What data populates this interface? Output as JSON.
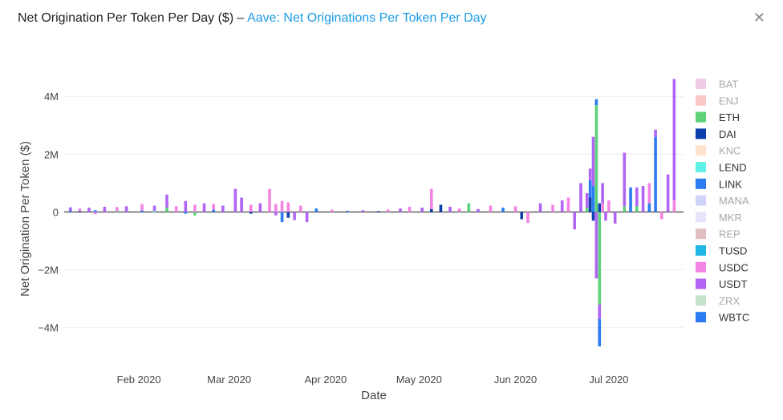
{
  "header": {
    "title": "Net Origination Per Token Per Day ($)",
    "separator": "–",
    "link_text": "Aave: Net Originations Per Token Per Day"
  },
  "close_icon": "close-icon",
  "chart_data": {
    "type": "bar",
    "barmode": "relative",
    "xlabel": "Date",
    "ylabel": "Net Origination Per Token ($)",
    "x_range": [
      "2020-01-08",
      "2020-07-25"
    ],
    "ylim": [
      -5200000,
      4700000
    ],
    "y_ticks": [
      {
        "value": 4000000,
        "label": "4M"
      },
      {
        "value": 2000000,
        "label": "2M"
      },
      {
        "value": 0,
        "label": "0"
      },
      {
        "value": -2000000,
        "label": "−2M"
      },
      {
        "value": -4000000,
        "label": "−4M"
      }
    ],
    "x_ticks": [
      {
        "date": "2020-02-01",
        "label": "Feb 2020"
      },
      {
        "date": "2020-03-01",
        "label": "Mar 2020"
      },
      {
        "date": "2020-04-01",
        "label": "Apr 2020"
      },
      {
        "date": "2020-05-01",
        "label": "May 2020"
      },
      {
        "date": "2020-06-01",
        "label": "Jun 2020"
      },
      {
        "date": "2020-07-01",
        "label": "Jul 2020"
      }
    ],
    "grid": true,
    "legend_position": "right",
    "series": [
      {
        "name": "BAT",
        "color": "#e3a2d4",
        "visible": false
      },
      {
        "name": "ENJ",
        "color": "#f49a9a",
        "visible": false
      },
      {
        "name": "ETH",
        "color": "#5dd27a",
        "visible": true
      },
      {
        "name": "DAI",
        "color": "#0d3fad",
        "visible": true
      },
      {
        "name": "KNC",
        "color": "#ffcba4",
        "visible": false
      },
      {
        "name": "LEND",
        "color": "#5ff0e6",
        "visible": true
      },
      {
        "name": "LINK",
        "color": "#2b7cf0",
        "visible": true
      },
      {
        "name": "MANA",
        "color": "#aab0f2",
        "visible": false
      },
      {
        "name": "MKR",
        "color": "#d4cdf8",
        "visible": false
      },
      {
        "name": "REP",
        "color": "#c98a8e",
        "visible": false
      },
      {
        "name": "TUSD",
        "color": "#1fb8e6",
        "visible": true
      },
      {
        "name": "USDC",
        "color": "#f384e4",
        "visible": true
      },
      {
        "name": "USDT",
        "color": "#b165f4",
        "visible": true
      },
      {
        "name": "ZRX",
        "color": "#93cba3",
        "visible": false
      },
      {
        "name": "WBTC",
        "color": "#2b7cf0",
        "visible": true
      }
    ],
    "days": [
      {
        "date": "2020-01-10",
        "values": {
          "USDT": 120000,
          "LINK": 40000
        }
      },
      {
        "date": "2020-01-13",
        "values": {
          "USDC": 90000,
          "DAI": 30000
        }
      },
      {
        "date": "2020-01-16",
        "values": {
          "USDT": 150000
        }
      },
      {
        "date": "2020-01-18",
        "values": {
          "USDC": -80000,
          "LINK": 60000
        }
      },
      {
        "date": "2020-01-21",
        "values": {
          "USDT": 180000
        }
      },
      {
        "date": "2020-01-25",
        "values": {
          "USDC": 140000,
          "ETH": 30000
        }
      },
      {
        "date": "2020-01-28",
        "values": {
          "USDT": 200000
        }
      },
      {
        "date": "2020-02-02",
        "values": {
          "USDC": 220000,
          "LINK": 50000
        }
      },
      {
        "date": "2020-02-06",
        "values": {
          "USDT": 180000,
          "LEND": 40000
        }
      },
      {
        "date": "2020-02-10",
        "values": {
          "USDT": 450000,
          "ETH": 150000
        }
      },
      {
        "date": "2020-02-13",
        "values": {
          "USDC": 200000
        }
      },
      {
        "date": "2020-02-16",
        "values": {
          "USDT": 380000,
          "LINK": -60000
        }
      },
      {
        "date": "2020-02-19",
        "values": {
          "USDC": 250000,
          "ETH": -120000
        }
      },
      {
        "date": "2020-02-22",
        "values": {
          "USDT": 300000
        }
      },
      {
        "date": "2020-02-25",
        "values": {
          "USDC": 200000,
          "LINK": 80000
        }
      },
      {
        "date": "2020-02-28",
        "values": {
          "USDT": 220000
        }
      },
      {
        "date": "2020-03-03",
        "values": {
          "USDT": 800000
        }
      },
      {
        "date": "2020-03-05",
        "values": {
          "USDT": 500000
        }
      },
      {
        "date": "2020-03-08",
        "values": {
          "USDC": 250000,
          "DAI": -60000
        }
      },
      {
        "date": "2020-03-11",
        "values": {
          "USDT": 300000
        }
      },
      {
        "date": "2020-03-14",
        "values": {
          "USDC": 800000
        }
      },
      {
        "date": "2020-03-16",
        "values": {
          "USDC": 280000,
          "USDT": -120000
        }
      },
      {
        "date": "2020-03-18",
        "values": {
          "USDC": 380000,
          "LINK": -350000
        }
      },
      {
        "date": "2020-03-20",
        "values": {
          "USDC": 330000,
          "DAI": -200000
        }
      },
      {
        "date": "2020-03-22",
        "values": {
          "USDT": -280000
        }
      },
      {
        "date": "2020-03-24",
        "values": {
          "USDC": 220000
        }
      },
      {
        "date": "2020-03-26",
        "values": {
          "USDT": -350000
        }
      },
      {
        "date": "2020-03-29",
        "values": {
          "LINK": 120000
        }
      },
      {
        "date": "2020-04-03",
        "values": {
          "USDC": 80000
        }
      },
      {
        "date": "2020-04-08",
        "values": {
          "LINK": 40000
        }
      },
      {
        "date": "2020-04-13",
        "values": {
          "USDT": 60000
        }
      },
      {
        "date": "2020-04-18",
        "values": {
          "DAI": 30000
        }
      },
      {
        "date": "2020-04-21",
        "values": {
          "USDC": 90000
        }
      },
      {
        "date": "2020-04-25",
        "values": {
          "USDT": 120000
        }
      },
      {
        "date": "2020-04-28",
        "values": {
          "USDC": 180000
        }
      },
      {
        "date": "2020-05-02",
        "values": {
          "USDT": 150000
        }
      },
      {
        "date": "2020-05-05",
        "values": {
          "USDC": 700000,
          "DAI": 100000
        }
      },
      {
        "date": "2020-05-08",
        "values": {
          "DAI": 250000
        }
      },
      {
        "date": "2020-05-11",
        "values": {
          "USDT": 180000
        }
      },
      {
        "date": "2020-05-14",
        "values": {
          "USDC": 120000
        }
      },
      {
        "date": "2020-05-17",
        "values": {
          "ETH": 300000
        }
      },
      {
        "date": "2020-05-20",
        "values": {
          "USDT": 100000
        }
      },
      {
        "date": "2020-05-24",
        "values": {
          "USDC": 220000
        }
      },
      {
        "date": "2020-05-28",
        "values": {
          "LINK": 150000
        }
      },
      {
        "date": "2020-06-01",
        "values": {
          "USDC": 200000
        }
      },
      {
        "date": "2020-06-03",
        "values": {
          "DAI": -250000
        }
      },
      {
        "date": "2020-06-05",
        "values": {
          "USDC": -380000
        }
      },
      {
        "date": "2020-06-09",
        "values": {
          "USDT": 300000
        }
      },
      {
        "date": "2020-06-13",
        "values": {
          "USDC": 250000
        }
      },
      {
        "date": "2020-06-16",
        "values": {
          "USDT": 400000
        }
      },
      {
        "date": "2020-06-18",
        "values": {
          "USDC": 500000
        }
      },
      {
        "date": "2020-06-20",
        "values": {
          "USDT": -600000
        }
      },
      {
        "date": "2020-06-22",
        "values": {
          "USDT": 1000000
        }
      },
      {
        "date": "2020-06-24",
        "values": {
          "USDT": 500000,
          "ETH": 150000
        }
      },
      {
        "date": "2020-06-25",
        "values": {
          "LINK": 600000,
          "DAI": 500000,
          "USDT": 400000
        }
      },
      {
        "date": "2020-06-26",
        "values": {
          "USDT": 1700000,
          "LINK": 900000,
          "DAI": -300000
        }
      },
      {
        "date": "2020-06-27",
        "values": {
          "ETH": 3700000,
          "LINK": 200000,
          "USDT": -2300000
        }
      },
      {
        "date": "2020-06-28",
        "values": {
          "DAI": 300000,
          "ETH": -3200000,
          "USDT": -500000,
          "WBTC": -950000
        }
      },
      {
        "date": "2020-06-29",
        "values": {
          "USDT": 700000,
          "USDC": 300000
        }
      },
      {
        "date": "2020-06-30",
        "values": {
          "USDT": -300000
        }
      },
      {
        "date": "2020-07-01",
        "values": {
          "USDC": 400000
        }
      },
      {
        "date": "2020-07-03",
        "values": {
          "USDT": -400000
        }
      },
      {
        "date": "2020-07-06",
        "values": {
          "USDT": 1850000,
          "ETH": 200000
        }
      },
      {
        "date": "2020-07-08",
        "values": {
          "LINK": 850000
        }
      },
      {
        "date": "2020-07-10",
        "values": {
          "USDT": 650000,
          "ETH": 200000
        }
      },
      {
        "date": "2020-07-12",
        "values": {
          "USDT": 900000
        }
      },
      {
        "date": "2020-07-14",
        "values": {
          "USDC": 700000,
          "LINK": 300000
        }
      },
      {
        "date": "2020-07-16",
        "values": {
          "LINK": 2600000,
          "USDT": 250000
        }
      },
      {
        "date": "2020-07-18",
        "values": {
          "USDC": -250000
        }
      },
      {
        "date": "2020-07-20",
        "values": {
          "USDT": 1300000
        }
      },
      {
        "date": "2020-07-22",
        "values": {
          "USDT": 4200000,
          "USDC": 400000
        }
      }
    ]
  }
}
